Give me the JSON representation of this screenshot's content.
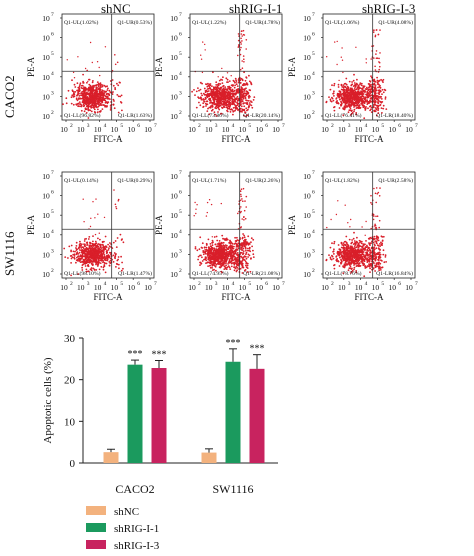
{
  "column_titles": [
    "shNC",
    "shRIG-I-1",
    "shRIG-I-3"
  ],
  "row_labels": [
    "CACO2",
    "SW1116"
  ],
  "flow_axes": {
    "xlabel": "FITC-A",
    "ylabel": "PE-A",
    "x_ticks": [
      "10",
      "10",
      "10",
      "10",
      "10",
      "10"
    ],
    "x_tick_exponents": [
      "2",
      "3",
      "4",
      "5",
      "6",
      "7"
    ],
    "y_ticks": [
      "10",
      "10",
      "10",
      "10",
      "10",
      "10"
    ],
    "y_tick_exponents": [
      "2",
      "3",
      "4",
      "5",
      "6",
      "7"
    ]
  },
  "chart_data": [
    {
      "type": "scatter",
      "subtype": "flow-cytometry-quadrants",
      "panels": [
        {
          "row": "CACO2",
          "column": "shNC",
          "quadrants": {
            "UL": "Q1-UL(1.02%)",
            "UR": "Q1-UR(0.53%)",
            "LL": "Q1-LL(96.82%)",
            "LR": "Q1-LR(1.63%)"
          }
        },
        {
          "row": "CACO2",
          "column": "shRIG-I-1",
          "quadrants": {
            "UL": "Q1-UL(1.22%)",
            "UR": "Q1-UR(4.78%)",
            "LL": "Q1-LL(73.86%)",
            "LR": "Q1-LR(20.14%)"
          }
        },
        {
          "row": "CACO2",
          "column": "shRIG-I-3",
          "quadrants": {
            "UL": "Q1-UL(1.06%)",
            "UR": "Q1-UR(4.08%)",
            "LL": "Q1-LL(76.41%)",
            "LR": "Q1-LR(18.40%)"
          }
        },
        {
          "row": "SW1116",
          "column": "shNC",
          "quadrants": {
            "UL": "Q1-UL(0.14%)",
            "UR": "Q1-UR(0.29%)",
            "LL": "Q1-LL(98.10%)",
            "LR": "Q1-LR(1.47%)"
          }
        },
        {
          "row": "SW1116",
          "column": "shRIG-I-1",
          "quadrants": {
            "UL": "Q1-UL(1.71%)",
            "UR": "Q1-UR(2.26%)",
            "LL": "Q1-LL(74.95%)",
            "LR": "Q1-LR(21.08%)"
          }
        },
        {
          "row": "SW1116",
          "column": "shRIG-I-3",
          "quadrants": {
            "UL": "Q1-UL(1.82%)",
            "UR": "Q1-UR(2.58%)",
            "LL": "Q1-LL(78.76%)",
            "LR": "Q1-LR(16.84%)"
          }
        }
      ]
    },
    {
      "type": "bar",
      "categories": [
        "CACO2",
        "SW1116"
      ],
      "ylabel": "Apoptotic cells (%)",
      "ylim": [
        0,
        30
      ],
      "yticks": [
        0,
        10,
        20,
        30
      ],
      "series": [
        {
          "name": "shNC",
          "color": "#f3b27e",
          "values": [
            2.6,
            2.5
          ],
          "errors": [
            0.7,
            0.9
          ],
          "significance": [
            "",
            ""
          ]
        },
        {
          "name": "shRIG-I-1",
          "color": "#1b9a5e",
          "values": [
            23.6,
            24.3
          ],
          "errors": [
            1.1,
            3.1
          ],
          "significance": [
            "***",
            "***"
          ]
        },
        {
          "name": "shRIG-I-3",
          "color": "#c8235f",
          "values": [
            22.8,
            22.6
          ],
          "errors": [
            1.8,
            3.4
          ],
          "significance": [
            "***",
            "***"
          ]
        }
      ],
      "legend_position": "bottom-left"
    }
  ]
}
